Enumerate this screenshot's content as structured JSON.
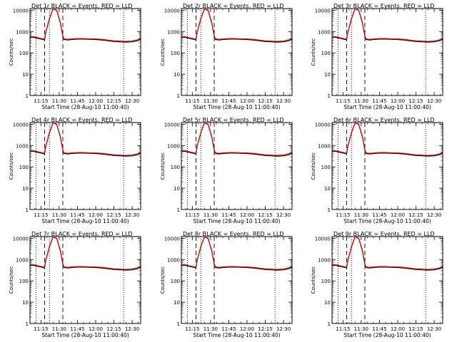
{
  "chart_data": [
    {
      "type": "line",
      "title": "Det 1r BLACK = Events, RED = LLD",
      "xlabel": "Start Time (28-Aug-10 11:00:40)",
      "ylabel": "Counts/sec"
    },
    {
      "type": "line",
      "title": "Det 2r BLACK = Events, RED = LLD",
      "xlabel": "Start Time (28-Aug-10 11:00:40)",
      "ylabel": "Counts/sec"
    },
    {
      "type": "line",
      "title": "Det 3r BLACK = Events, RED = LLD",
      "xlabel": "Start Time (28-Aug-10 11:00:40)",
      "ylabel": "Counts/sec"
    },
    {
      "type": "line",
      "title": "Det 4r BLACK = Events, RED = LLD",
      "xlabel": "Start Time (28-Aug-10 11:00:40)",
      "ylabel": "Counts/sec"
    },
    {
      "type": "line",
      "title": "Det 5r BLACK = Events, RED = LLD",
      "xlabel": "Start Time (28-Aug-10 11:00:40)",
      "ylabel": "Counts/sec"
    },
    {
      "type": "line",
      "title": "Det 6r BLACK = Events, RED = LLD",
      "xlabel": "Start Time (28-Aug-10 11:00:40)",
      "ylabel": "Counts/sec"
    },
    {
      "type": "line",
      "title": "Det 7r BLACK = Events, RED = LLD",
      "xlabel": "Start Time (28-Aug-10 11:00:40)",
      "ylabel": "Counts/sec"
    },
    {
      "type": "line",
      "title": "Det 8r BLACK = Events, RED = LLD",
      "xlabel": "Start Time (28-Aug-10 11:00:40)",
      "ylabel": "Counts/sec"
    },
    {
      "type": "line",
      "title": "Det 9r BLACK = Events, RED = LLD",
      "xlabel": "Start Time (28-Aug-10 11:00:40)",
      "ylabel": "Counts/sec"
    }
  ],
  "shared": {
    "xlim": [
      "11:06",
      "12:37"
    ],
    "x_ticks": [
      "11:15",
      "11:30",
      "11:45",
      "12:00",
      "12:15",
      "12:30"
    ],
    "ylim": [
      1,
      12000
    ],
    "y_scale": "log",
    "y_ticks": [
      "1",
      "10",
      "100",
      "1000",
      "10000"
    ],
    "markers": {
      "dotted": [
        "11:11",
        "11:22",
        "12:23"
      ],
      "dashed": [
        "11:18",
        "11:33"
      ]
    },
    "colors": {
      "events": "#000000",
      "lld": "#ff0000"
    },
    "series": [
      {
        "name": "Events",
        "color": "#000000",
        "x": [
          "11:06",
          "11:10",
          "11:14",
          "11:17",
          "11:18",
          "11:19",
          "11:22",
          "11:25",
          "11:28",
          "11:31",
          "11:33",
          "11:34",
          "11:37",
          "11:40",
          "11:45",
          "11:50",
          "11:55",
          "12:00",
          "12:05",
          "12:10",
          "12:15",
          "12:20",
          "12:25",
          "12:30",
          "12:35",
          "12:37"
        ],
        "y": [
          560,
          520,
          460,
          420,
          400,
          900,
          4000,
          12000,
          9500,
          2500,
          600,
          420,
          400,
          420,
          440,
          440,
          430,
          420,
          400,
          370,
          340,
          330,
          320,
          330,
          380,
          450
        ]
      },
      {
        "name": "LLD",
        "color": "#ff0000",
        "x": [
          "11:06",
          "11:10",
          "11:14",
          "11:17",
          "11:18",
          "11:19",
          "11:22",
          "11:25",
          "11:28",
          "11:31",
          "11:33",
          "11:34",
          "11:37",
          "11:40",
          "11:45",
          "11:50",
          "11:55",
          "12:00",
          "12:05",
          "12:10",
          "12:15",
          "12:20",
          "12:25",
          "12:30",
          "12:35",
          "12:37"
        ],
        "y": [
          600,
          560,
          490,
          450,
          440,
          950,
          4200,
          12000,
          10000,
          2700,
          650,
          460,
          430,
          450,
          470,
          470,
          460,
          450,
          430,
          400,
          370,
          355,
          345,
          360,
          420,
          520
        ]
      }
    ]
  }
}
